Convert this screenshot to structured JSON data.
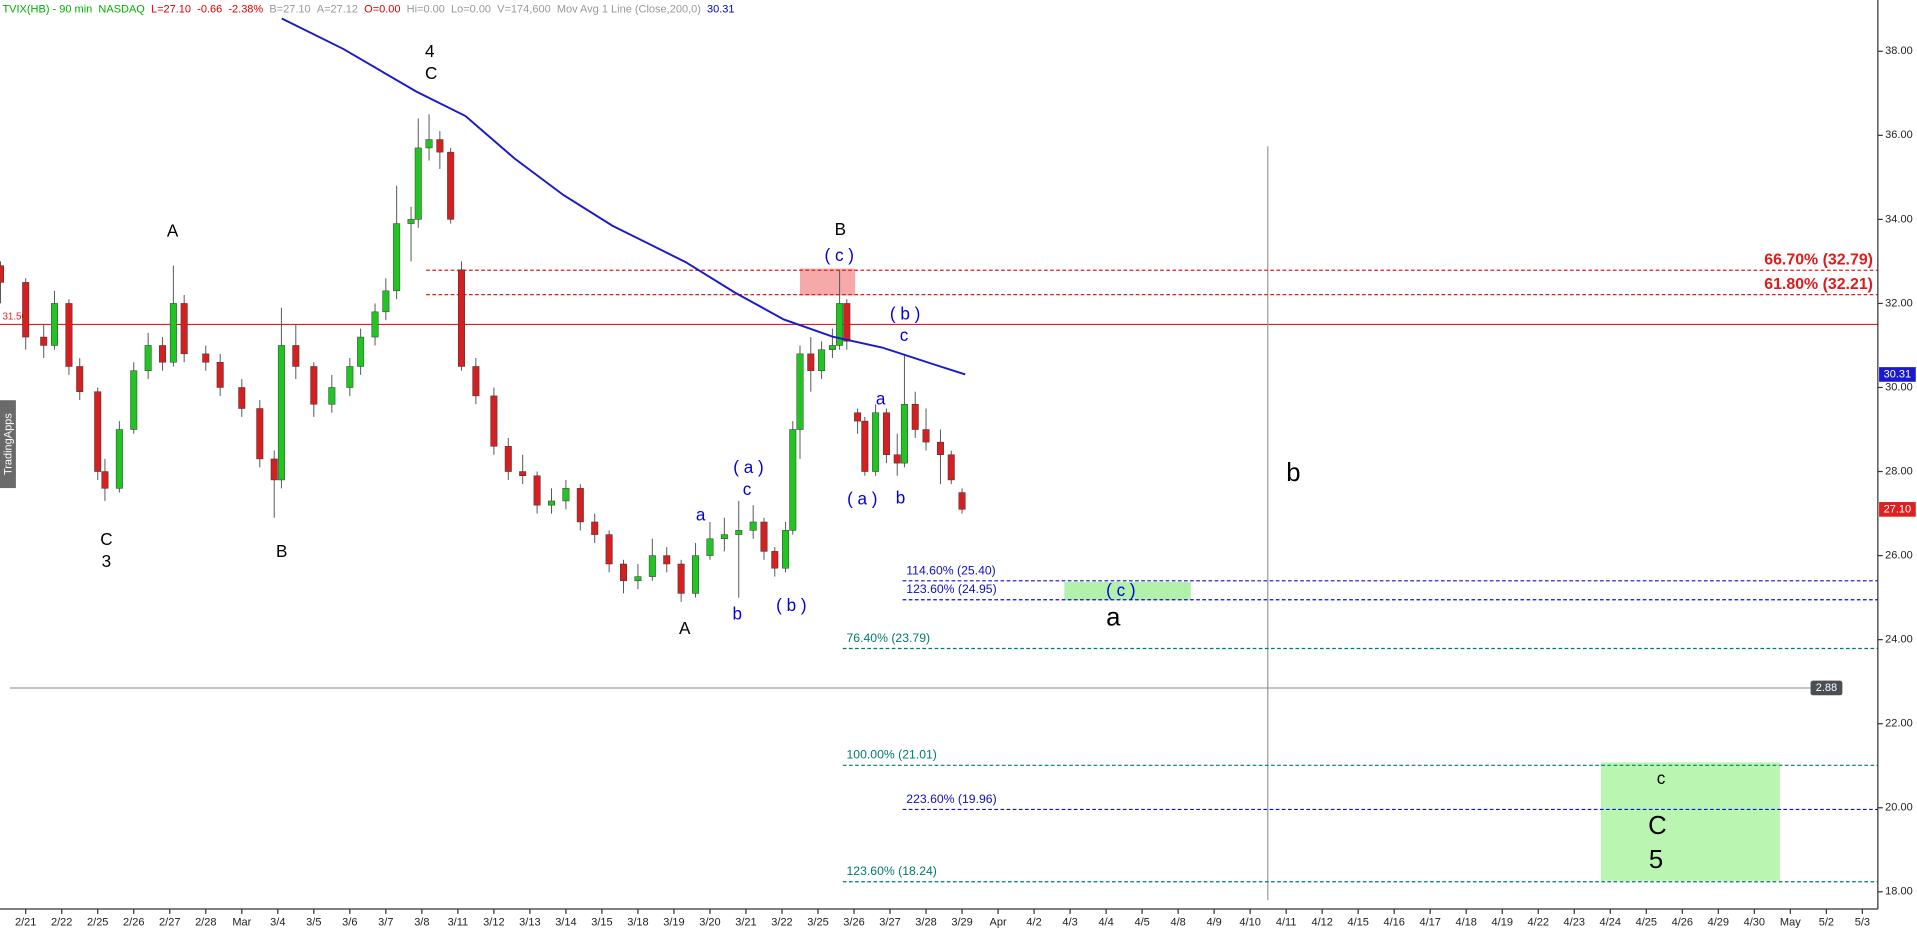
{
  "chart_data": {
    "type": "candlestick",
    "header": {
      "items": [
        "TVIX(HB) - 90 min",
        "NASDAQ",
        "L=27.10",
        "-0.66",
        "-2.38%",
        "B=27.10",
        "A=27.12",
        "O=0.00",
        "Hi=0.00",
        "Lo=0.00",
        "V=174,600",
        "Mov Avg 1 Line (Close,200,0)",
        "30.31"
      ],
      "colors": [
        "#00b000",
        "#00b000",
        "#e00000",
        "#e00000",
        "#e00000",
        "#999999",
        "#999999",
        "#e00000",
        "#999999",
        "#999999",
        "#999999",
        "#999999",
        "#0000cc"
      ]
    },
    "side_tab": "TradingApps",
    "xlim": [
      -0.714,
      51.43
    ],
    "ylim": [
      17.59,
      39.22
    ],
    "xticks": [
      {
        "value": 0,
        "label": "2/21"
      },
      {
        "value": 1,
        "label": "2/22"
      },
      {
        "value": 2,
        "label": "2/25"
      },
      {
        "value": 3,
        "label": "2/26"
      },
      {
        "value": 4,
        "label": "2/27"
      },
      {
        "value": 5,
        "label": "2/28"
      },
      {
        "value": 6,
        "label": "Mar"
      },
      {
        "value": 7,
        "label": "3/4"
      },
      {
        "value": 8,
        "label": "3/5"
      },
      {
        "value": 9,
        "label": "3/6"
      },
      {
        "value": 10,
        "label": "3/7"
      },
      {
        "value": 11,
        "label": "3/8"
      },
      {
        "value": 12,
        "label": "3/11"
      },
      {
        "value": 13,
        "label": "3/12"
      },
      {
        "value": 14,
        "label": "3/13"
      },
      {
        "value": 15,
        "label": "3/14"
      },
      {
        "value": 16,
        "label": "3/15"
      },
      {
        "value": 17,
        "label": "3/18"
      },
      {
        "value": 18,
        "label": "3/19"
      },
      {
        "value": 19,
        "label": "3/20"
      },
      {
        "value": 20,
        "label": "3/21"
      },
      {
        "value": 21,
        "label": "3/22"
      },
      {
        "value": 22,
        "label": "3/25"
      },
      {
        "value": 23,
        "label": "3/26"
      },
      {
        "value": 24,
        "label": "3/27"
      },
      {
        "value": 25,
        "label": "3/28"
      },
      {
        "value": 26,
        "label": "3/29"
      },
      {
        "value": 27,
        "label": "Apr"
      },
      {
        "value": 28,
        "label": "4/2"
      },
      {
        "value": 29,
        "label": "4/3"
      },
      {
        "value": 30,
        "label": "4/4"
      },
      {
        "value": 31,
        "label": "4/5"
      },
      {
        "value": 32,
        "label": "4/8"
      },
      {
        "value": 33,
        "label": "4/9"
      },
      {
        "value": 34,
        "label": "4/10"
      },
      {
        "value": 35,
        "label": "4/11"
      },
      {
        "value": 36,
        "label": "4/12"
      },
      {
        "value": 37,
        "label": "4/15"
      },
      {
        "value": 38,
        "label": "4/16"
      },
      {
        "value": 39,
        "label": "4/17"
      },
      {
        "value": 40,
        "label": "4/18"
      },
      {
        "value": 41,
        "label": "4/19"
      },
      {
        "value": 42,
        "label": "4/22"
      },
      {
        "value": 43,
        "label": "4/23"
      },
      {
        "value": 44,
        "label": "4/24"
      },
      {
        "value": 45,
        "label": "4/25"
      },
      {
        "value": 46,
        "label": "4/26"
      },
      {
        "value": 47,
        "label": "4/29"
      },
      {
        "value": 48,
        "label": "4/30"
      },
      {
        "value": 49,
        "label": "May"
      },
      {
        "value": 50,
        "label": "5/2"
      },
      {
        "value": 51,
        "label": "5/3"
      }
    ],
    "yticks": [
      {
        "value": 18,
        "label": "18.00"
      },
      {
        "value": 20,
        "label": "20.00"
      },
      {
        "value": 22,
        "label": "22.00"
      },
      {
        "value": 24,
        "label": "24.00"
      },
      {
        "value": 26,
        "label": "26.00"
      },
      {
        "value": 28,
        "label": "28.00"
      },
      {
        "value": 30,
        "label": "30.00"
      },
      {
        "value": 32,
        "label": "32.00"
      },
      {
        "value": 34,
        "label": "34.00"
      },
      {
        "value": 36,
        "label": "36.00"
      },
      {
        "value": 38,
        "label": "38.00"
      }
    ],
    "up_color": "#22c422",
    "down_color": "#d42020",
    "candles": {
      "x": [
        -0.7,
        0,
        0.5,
        0.8,
        1.2,
        1.5,
        2.0,
        2.2,
        2.6,
        3.0,
        3.4,
        3.8,
        4.1,
        4.4,
        5.0,
        5.4,
        6.0,
        6.5,
        6.9,
        7.1,
        7.5,
        8.0,
        8.5,
        9.0,
        9.3,
        9.7,
        10.0,
        10.3,
        10.7,
        10.9,
        11.2,
        11.5,
        11.8,
        12.1,
        12.5,
        13.0,
        13.4,
        13.8,
        14.2,
        14.6,
        15.0,
        15.4,
        15.8,
        16.2,
        16.6,
        17.0,
        17.4,
        17.8,
        18.2,
        18.6,
        19.0,
        19.4,
        19.8,
        20.2,
        20.5,
        20.8,
        21.1,
        21.3,
        21.5,
        21.8,
        22.1,
        22.4,
        22.6,
        22.8,
        23.1,
        23.3,
        23.6,
        23.9,
        24.2,
        24.4,
        24.7,
        25.0,
        25.4,
        25.7,
        26.0
      ],
      "open": [
        32.9,
        32.5,
        31.2,
        31.0,
        32.0,
        30.5,
        29.9,
        28.0,
        27.6,
        29.0,
        30.4,
        31.0,
        30.6,
        32.0,
        30.8,
        30.6,
        30.0,
        29.5,
        28.3,
        27.8,
        31.0,
        30.5,
        29.6,
        30.0,
        30.5,
        31.2,
        31.8,
        32.3,
        33.9,
        34.0,
        35.7,
        35.9,
        35.6,
        32.8,
        30.5,
        29.8,
        28.6,
        28.0,
        27.9,
        27.2,
        27.3,
        27.6,
        26.8,
        26.5,
        25.8,
        25.4,
        25.5,
        26.0,
        25.8,
        25.1,
        26.0,
        26.4,
        26.5,
        26.6,
        26.8,
        26.1,
        25.7,
        26.6,
        29.0,
        30.8,
        30.4,
        30.9,
        31.0,
        32.0,
        29.4,
        29.2,
        28.0,
        29.4,
        28.4,
        28.2,
        29.6,
        29.0,
        28.7,
        28.4,
        27.5
      ],
      "high": [
        33.0,
        32.6,
        31.5,
        32.3,
        32.1,
        30.7,
        30.0,
        28.3,
        29.2,
        30.6,
        31.3,
        31.2,
        32.9,
        32.2,
        31.0,
        30.8,
        30.2,
        29.7,
        28.5,
        31.9,
        31.5,
        30.6,
        30.3,
        30.7,
        31.4,
        32.0,
        32.6,
        34.8,
        34.3,
        36.4,
        36.5,
        36.1,
        35.7,
        33.0,
        30.7,
        30.0,
        28.8,
        28.4,
        28.0,
        27.6,
        27.8,
        27.7,
        27.0,
        26.6,
        25.9,
        25.8,
        26.4,
        26.2,
        25.9,
        26.3,
        26.8,
        26.9,
        27.3,
        27.2,
        26.9,
        26.2,
        26.8,
        29.2,
        31.0,
        31.2,
        31.1,
        31.4,
        32.8,
        32.1,
        29.5,
        29.3,
        29.6,
        29.5,
        28.9,
        30.8,
        29.9,
        29.5,
        29.0,
        28.5,
        27.6
      ],
      "low": [
        32.0,
        30.9,
        30.7,
        30.9,
        30.3,
        29.7,
        27.8,
        27.3,
        27.5,
        28.9,
        30.2,
        30.4,
        30.5,
        30.6,
        30.4,
        29.8,
        29.3,
        28.1,
        26.9,
        27.6,
        30.2,
        29.3,
        29.4,
        29.8,
        30.3,
        31.0,
        31.6,
        32.1,
        33.0,
        33.8,
        35.4,
        35.2,
        33.9,
        30.4,
        29.6,
        28.4,
        27.8,
        27.7,
        27.0,
        27.0,
        27.1,
        26.6,
        26.3,
        25.6,
        25.1,
        25.2,
        25.4,
        25.6,
        24.9,
        25.0,
        25.9,
        26.1,
        25.0,
        26.4,
        25.9,
        25.5,
        25.6,
        26.5,
        28.3,
        29.9,
        30.2,
        30.7,
        30.9,
        30.9,
        28.9,
        27.9,
        27.9,
        28.2,
        27.9,
        28.1,
        28.8,
        28.5,
        27.7,
        27.7,
        27.0
      ],
      "close": [
        32.5,
        31.2,
        31.0,
        32.0,
        30.5,
        29.9,
        28.0,
        27.6,
        29.0,
        30.4,
        31.0,
        30.6,
        32.0,
        30.8,
        30.6,
        30.0,
        29.5,
        28.3,
        27.8,
        31.0,
        30.5,
        29.6,
        30.0,
        30.5,
        31.2,
        31.8,
        32.3,
        33.9,
        34.0,
        35.7,
        35.9,
        35.6,
        34.0,
        30.5,
        29.8,
        28.6,
        28.0,
        27.9,
        27.2,
        27.3,
        27.6,
        26.8,
        26.5,
        25.8,
        25.4,
        25.5,
        26.0,
        25.8,
        25.1,
        26.0,
        26.4,
        26.5,
        26.6,
        26.8,
        26.1,
        25.7,
        26.6,
        29.0,
        30.8,
        30.4,
        30.9,
        31.0,
        32.0,
        31.1,
        29.2,
        28.0,
        29.4,
        28.4,
        28.2,
        29.6,
        29.0,
        28.7,
        28.4,
        27.8,
        27.1
      ]
    },
    "ma": {
      "color": "#1a1acc",
      "x": [
        7.11,
        8.81,
        10.85,
        12.21,
        13.57,
        14.93,
        16.29,
        18.33,
        19.69,
        21.05,
        22.41,
        23.78,
        25.14,
        26.09
      ],
      "values": [
        38.78,
        38.06,
        37.04,
        36.46,
        35.45,
        34.58,
        33.85,
        32.98,
        32.26,
        31.62,
        31.21,
        30.95,
        30.57,
        30.31
      ]
    },
    "price_tags": [
      {
        "value": 30.31,
        "label": "30.31",
        "color": "#1a1acc"
      },
      {
        "value": 27.1,
        "label": "27.10",
        "color": "#e02020"
      }
    ],
    "red_line": {
      "value": 31.5,
      "label": "31.50",
      "color": "#e02020"
    },
    "gray_line": {
      "y": 22.85,
      "tag": "2.88",
      "color": "#888888"
    },
    "vline": {
      "x": 34.49,
      "y": [
        17.8,
        35.74
      ]
    },
    "levels": [
      {
        "label": "66.70% (32.79)",
        "value": 32.79,
        "x0": 11.12,
        "color": "#e31a1c",
        "side": "right"
      },
      {
        "label": "61.80% (32.21)",
        "value": 32.21,
        "x0": 11.12,
        "color": "#e31a1c",
        "side": "right"
      },
      {
        "label": "114.60% (25.40)",
        "value": 25.4,
        "x0": 24.35,
        "color": "#1010c0",
        "side": "left"
      },
      {
        "label": "123.60% (24.95)",
        "value": 24.95,
        "x0": 24.35,
        "color": "#1010c0",
        "side": "left"
      },
      {
        "label": "76.40% (23.79)",
        "value": 23.79,
        "x0": 22.69,
        "color": "#007a70",
        "side": "left"
      },
      {
        "label": "100.00% (21.01)",
        "value": 21.01,
        "x0": 22.69,
        "color": "#007a70",
        "side": "left"
      },
      {
        "label": "223.60% (19.96)",
        "value": 19.96,
        "x0": 24.35,
        "color": "#1010c0",
        "side": "left"
      },
      {
        "label": "123.60% (18.24)",
        "value": 18.24,
        "x0": 22.69,
        "color": "#007a70",
        "side": "left"
      }
    ],
    "zones": [
      {
        "x": [
          21.5,
          23.03
        ],
        "y": [
          32.19,
          32.83
        ],
        "color": "#f4a0a0"
      },
      {
        "x": [
          28.84,
          32.35
        ],
        "y": [
          24.94,
          25.37
        ],
        "color": "#a8f0a0"
      },
      {
        "x": [
          43.74,
          48.71
        ],
        "y": [
          18.26,
          21.08
        ],
        "color": "#b4f4aa"
      }
    ],
    "annotations": [
      {
        "text": "4",
        "x": 11.22,
        "y": 37.97,
        "color": "#000000",
        "size": "normal"
      },
      {
        "text": "C",
        "x": 11.26,
        "y": 37.45,
        "color": "#000000",
        "size": "normal"
      },
      {
        "text": "A",
        "x": 4.08,
        "y": 33.7,
        "color": "#000000",
        "size": "normal"
      },
      {
        "text": "C",
        "x": 2.24,
        "y": 26.36,
        "color": "#000000",
        "size": "normal"
      },
      {
        "text": "3",
        "x": 2.24,
        "y": 25.84,
        "color": "#000000",
        "size": "normal"
      },
      {
        "text": "B",
        "x": 7.11,
        "y": 26.07,
        "color": "#000000",
        "size": "normal"
      },
      {
        "text": "B",
        "x": 22.62,
        "y": 33.73,
        "color": "#000000",
        "size": "normal"
      },
      {
        "text": "( c )",
        "x": 22.59,
        "y": 33.12,
        "color": "#0000dd",
        "size": "normal"
      },
      {
        "text": "( b )",
        "x": 24.42,
        "y": 31.73,
        "color": "#0000dd",
        "size": "normal"
      },
      {
        "text": "c",
        "x": 24.39,
        "y": 31.21,
        "color": "#0000dd",
        "size": "normal"
      },
      {
        "text": "a",
        "x": 23.74,
        "y": 29.7,
        "color": "#0000dd",
        "size": "normal"
      },
      {
        "text": "( a )",
        "x": 23.23,
        "y": 27.32,
        "color": "#0000dd",
        "size": "normal"
      },
      {
        "text": "b",
        "x": 24.29,
        "y": 27.35,
        "color": "#0000dd",
        "size": "normal"
      },
      {
        "text": "( a )",
        "x": 20.07,
        "y": 28.07,
        "color": "#0000dd",
        "size": "normal"
      },
      {
        "text": "c",
        "x": 20.03,
        "y": 27.55,
        "color": "#0000dd",
        "size": "normal"
      },
      {
        "text": "a",
        "x": 18.74,
        "y": 26.94,
        "color": "#0000dd",
        "size": "normal"
      },
      {
        "text": "b",
        "x": 19.76,
        "y": 24.59,
        "color": "#0000dd",
        "size": "normal"
      },
      {
        "text": "( b )",
        "x": 21.26,
        "y": 24.79,
        "color": "#0000dd",
        "size": "normal"
      },
      {
        "text": "A",
        "x": 18.3,
        "y": 24.24,
        "color": "#000000",
        "size": "normal"
      },
      {
        "text": "( c )",
        "x": 30.41,
        "y": 25.14,
        "color": "#0000dd",
        "size": "normal"
      },
      {
        "text": "a",
        "x": 30.2,
        "y": 24.5,
        "color": "#000000",
        "size": "large"
      },
      {
        "text": "b",
        "x": 35.2,
        "y": 27.93,
        "color": "#000000",
        "size": "large"
      },
      {
        "text": "c",
        "x": 45.41,
        "y": 20.67,
        "color": "#000000",
        "size": "normal"
      },
      {
        "text": "C",
        "x": 45.31,
        "y": 19.54,
        "color": "#000000",
        "size": "large"
      },
      {
        "text": "5",
        "x": 45.27,
        "y": 18.73,
        "color": "#000000",
        "size": "large"
      }
    ]
  }
}
